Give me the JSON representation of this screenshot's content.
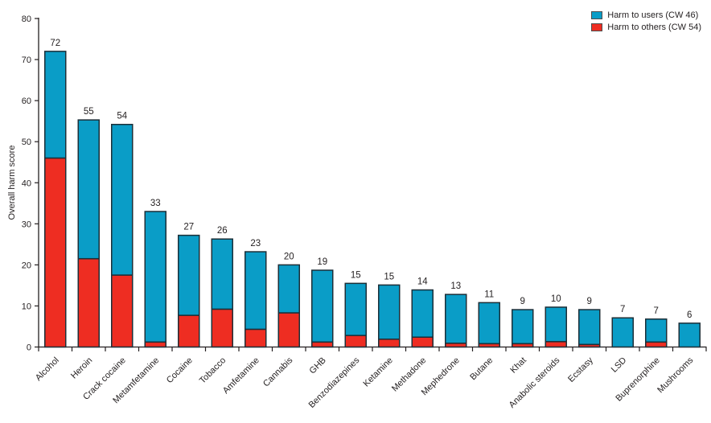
{
  "chart_data": {
    "type": "bar",
    "stacked": true,
    "title": "",
    "xlabel": "",
    "ylabel": "Overall harm score",
    "ylim": [
      0,
      80
    ],
    "yticks": [
      0,
      10,
      20,
      30,
      40,
      50,
      60,
      70,
      80
    ],
    "grid": false,
    "legend_position": "top-right",
    "categories": [
      "Alcohol",
      "Heroin",
      "Crack cocaine",
      "Metamfetamine",
      "Cocaine",
      "Tobacco",
      "Amfetamine",
      "Cannabis",
      "GHB",
      "Benzodiazepines",
      "Ketamine",
      "Methadone",
      "Mephedrone",
      "Butane",
      "Khat",
      "Anabolic steroids",
      "Ecstasy",
      "LSD",
      "Buprenorphine",
      "Mushrooms"
    ],
    "series": [
      {
        "name": "Harm to others (CW 54)",
        "color": "#ee2d22",
        "values": [
          46,
          21.5,
          17.5,
          1.2,
          7.7,
          9.2,
          4.3,
          8.3,
          1.2,
          2.8,
          1.9,
          2.4,
          0.9,
          0.8,
          0.8,
          1.3,
          0.6,
          0,
          1.2,
          0
        ]
      },
      {
        "name": "Harm to users (CW 46)",
        "color": "#0a9dc7",
        "values": [
          26,
          33.8,
          36.7,
          31.8,
          19.5,
          17.1,
          18.9,
          11.7,
          17.5,
          12.7,
          13.2,
          11.5,
          11.9,
          10,
          8.3,
          8.4,
          8.5,
          7.1,
          5.6,
          5.8
        ]
      }
    ],
    "bar_value_labels": [
      "72",
      "55",
      "54",
      "33",
      "27",
      "26",
      "23",
      "20",
      "19",
      "15",
      "15",
      "14",
      "13",
      "11",
      "9",
      "10",
      "9",
      "7",
      "7",
      "6"
    ]
  },
  "legend": {
    "users_label": "Harm to users (CW 46)",
    "others_label": "Harm to others (CW 54)"
  },
  "axis": {
    "ylabel": "Overall harm score"
  },
  "colors": {
    "users": "#0a9dc7",
    "others": "#ee2d22",
    "bar_border": "#1c2f38",
    "axis": "#231f20",
    "text": "#231f20"
  }
}
